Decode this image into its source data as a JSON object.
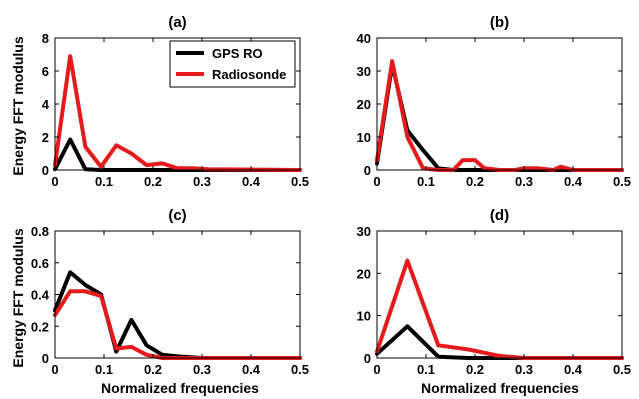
{
  "colors": {
    "gps": "#000000",
    "radiosonde": "#e41a1c",
    "axis": "#000000"
  },
  "labels": {
    "ylabel_top": "Energy FFT modulus",
    "ylabel_bottom": "Energy FFT modulus",
    "xlabel_left": "Normalized frequencies",
    "xlabel_right": "Normalized frequencies"
  },
  "legend": {
    "items": [
      "GPS RO",
      "Radiosonde"
    ],
    "placement": "top-right of panel (a)"
  },
  "chart_data": [
    {
      "type": "line",
      "title": "(a)",
      "xlim": [
        0,
        0.5
      ],
      "ylim": [
        0,
        8
      ],
      "xticks": [
        "0",
        "0.1",
        "0.2",
        "0.3",
        "0.4",
        "0.5"
      ],
      "yticks": [
        "0",
        "2",
        "4",
        "6",
        "8"
      ],
      "series": [
        {
          "name": "GPS RO",
          "x": [
            0,
            0.031,
            0.062,
            0.094,
            0.125,
            0.5
          ],
          "y": [
            0.05,
            1.85,
            0.05,
            0,
            0,
            0
          ]
        },
        {
          "name": "Radiosonde",
          "x": [
            0,
            0.031,
            0.062,
            0.094,
            0.125,
            0.156,
            0.187,
            0.219,
            0.25,
            0.281,
            0.312,
            0.5
          ],
          "y": [
            0.3,
            6.9,
            1.4,
            0.2,
            1.5,
            1.0,
            0.3,
            0.4,
            0.1,
            0.1,
            0.05,
            0
          ]
        }
      ]
    },
    {
      "type": "line",
      "title": "(b)",
      "xlim": [
        0,
        0.5
      ],
      "ylim": [
        0,
        40
      ],
      "xticks": [
        "0",
        "0.1",
        "0.2",
        "0.3",
        "0.4",
        "0.5"
      ],
      "yticks": [
        "0",
        "10",
        "20",
        "30",
        "40"
      ],
      "series": [
        {
          "name": "GPS RO",
          "x": [
            0,
            0.031,
            0.062,
            0.094,
            0.125,
            0.156,
            0.5
          ],
          "y": [
            2,
            32,
            12,
            6,
            0.5,
            0,
            0
          ]
        },
        {
          "name": "Radiosonde",
          "x": [
            0,
            0.031,
            0.062,
            0.094,
            0.125,
            0.156,
            0.175,
            0.2,
            0.219,
            0.25,
            0.281,
            0.3,
            0.33,
            0.36,
            0.375,
            0.4,
            0.5
          ],
          "y": [
            3,
            33,
            10,
            0.5,
            0,
            0,
            3,
            3,
            0.5,
            0,
            0,
            0.5,
            0.5,
            0,
            1,
            0,
            0
          ]
        }
      ]
    },
    {
      "type": "line",
      "title": "(c)",
      "xlim": [
        0,
        0.5
      ],
      "ylim": [
        0,
        0.8
      ],
      "xticks": [
        "0",
        "0.1",
        "0.2",
        "0.3",
        "0.4",
        "0.5"
      ],
      "yticks": [
        "0",
        "0.2",
        "0.4",
        "0.6",
        "0.8"
      ],
      "series": [
        {
          "name": "GPS RO",
          "x": [
            0,
            0.031,
            0.062,
            0.094,
            0.125,
            0.156,
            0.187,
            0.219,
            0.25,
            0.3,
            0.5
          ],
          "y": [
            0.3,
            0.54,
            0.46,
            0.4,
            0.04,
            0.24,
            0.08,
            0.02,
            0.01,
            0,
            0
          ]
        },
        {
          "name": "Radiosonde",
          "x": [
            0,
            0.031,
            0.062,
            0.094,
            0.125,
            0.156,
            0.187,
            0.219,
            0.5
          ],
          "y": [
            0.27,
            0.42,
            0.42,
            0.39,
            0.06,
            0.07,
            0.02,
            0,
            0
          ]
        }
      ]
    },
    {
      "type": "line",
      "title": "(d)",
      "xlim": [
        0,
        0.5
      ],
      "ylim": [
        0,
        30
      ],
      "xticks": [
        "0",
        "0.1",
        "0.2",
        "0.3",
        "0.4",
        "0.5"
      ],
      "yticks": [
        "0",
        "10",
        "20",
        "30"
      ],
      "series": [
        {
          "name": "GPS RO",
          "x": [
            0,
            0.062,
            0.125,
            0.187,
            0.5
          ],
          "y": [
            1,
            7.5,
            0.3,
            0,
            0
          ]
        },
        {
          "name": "Radiosonde",
          "x": [
            0,
            0.062,
            0.125,
            0.187,
            0.25,
            0.3,
            0.5
          ],
          "y": [
            1.5,
            23,
            3,
            2,
            0.5,
            0,
            0
          ]
        }
      ]
    }
  ]
}
